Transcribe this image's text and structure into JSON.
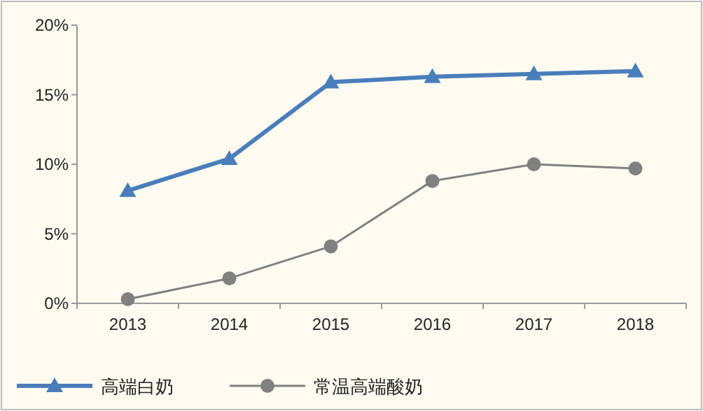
{
  "chart_data": {
    "type": "line",
    "categories": [
      "2013",
      "2014",
      "2015",
      "2016",
      "2017",
      "2018"
    ],
    "series": [
      {
        "name": "高端白奶",
        "color": "#4a7ebb",
        "marker": "triangle",
        "values": [
          8.1,
          10.4,
          15.9,
          16.3,
          16.5,
          16.7
        ]
      },
      {
        "name": "常温高端酸奶",
        "color": "#808080",
        "marker": "circle",
        "values": [
          0.3,
          1.8,
          4.1,
          8.8,
          10.0,
          9.7
        ]
      }
    ],
    "ylim": [
      0,
      20
    ],
    "yticks": [
      {
        "value": 0,
        "label": "0%"
      },
      {
        "value": 5,
        "label": "5%"
      },
      {
        "value": 10,
        "label": "10%"
      },
      {
        "value": 15,
        "label": "15%"
      },
      {
        "value": 20,
        "label": "20%"
      }
    ],
    "grid": false,
    "legend": "bottom"
  }
}
